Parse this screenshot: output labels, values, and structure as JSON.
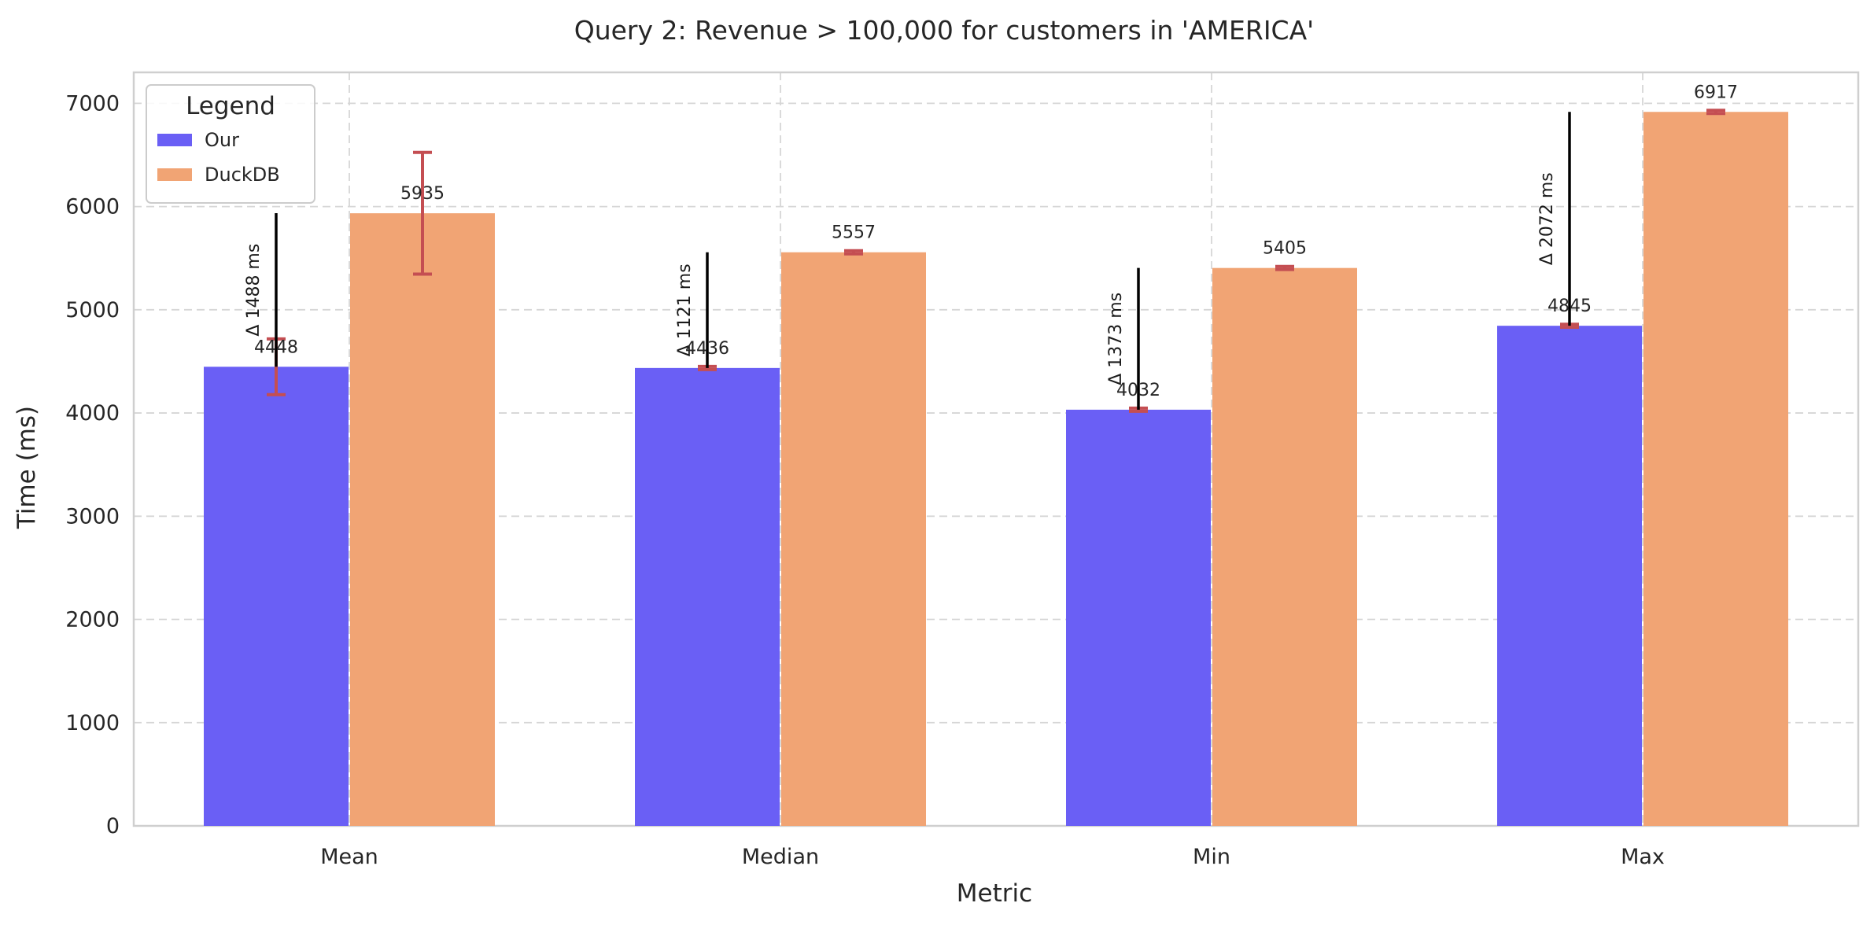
{
  "chart_data": {
    "type": "bar",
    "title": "Query 2: Revenue > 100,000 for customers in 'AMERICA'",
    "xlabel": "Metric",
    "ylabel": "Time (ms)",
    "categories": [
      "Mean",
      "Median",
      "Min",
      "Max"
    ],
    "ylim": [
      0,
      7300
    ],
    "yticks": [
      0,
      1000,
      2000,
      3000,
      4000,
      5000,
      6000,
      7000
    ],
    "grid": true,
    "legend": {
      "title": "Legend",
      "placement": "top-left"
    },
    "series": [
      {
        "name": "Our",
        "color": "#6a5ff5",
        "values": [
          4448,
          4436,
          4032,
          4845
        ],
        "labels": [
          "4448",
          "4436",
          "4032",
          "4845"
        ],
        "error": [
          270,
          15,
          15,
          15
        ]
      },
      {
        "name": "DuckDB",
        "color": "#f1a474",
        "values": [
          5935,
          5557,
          5405,
          6917
        ],
        "labels": [
          "5935",
          "5557",
          "5405",
          "6917"
        ],
        "error": [
          590,
          15,
          15,
          15
        ]
      }
    ],
    "error_color": "#c44e52",
    "deltas": [
      {
        "value": 1488,
        "label": "Δ 1488 ms"
      },
      {
        "value": 1121,
        "label": "Δ 1121 ms"
      },
      {
        "value": 1373,
        "label": "Δ 1373 ms"
      },
      {
        "value": 2072,
        "label": "Δ 2072 ms"
      }
    ]
  }
}
